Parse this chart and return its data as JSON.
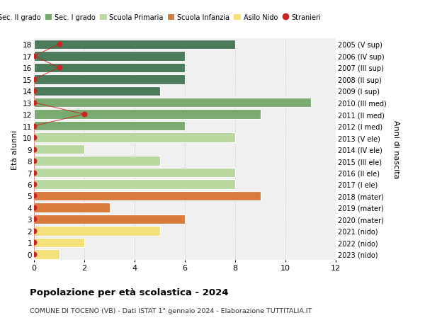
{
  "ages": [
    18,
    17,
    16,
    15,
    14,
    13,
    12,
    11,
    10,
    9,
    8,
    7,
    6,
    5,
    4,
    3,
    2,
    1,
    0
  ],
  "right_labels": [
    "2005 (V sup)",
    "2006 (IV sup)",
    "2007 (III sup)",
    "2008 (II sup)",
    "2009 (I sup)",
    "2010 (III med)",
    "2011 (II med)",
    "2012 (I med)",
    "2013 (V ele)",
    "2014 (IV ele)",
    "2015 (III ele)",
    "2016 (II ele)",
    "2017 (I ele)",
    "2018 (mater)",
    "2019 (mater)",
    "2020 (mater)",
    "2021 (nido)",
    "2022 (nido)",
    "2023 (nido)"
  ],
  "bar_values": [
    8,
    6,
    6,
    6,
    5,
    11,
    9,
    6,
    8,
    2,
    5,
    8,
    8,
    9,
    3,
    6,
    5,
    2,
    1
  ],
  "bar_colors": [
    "#4a7c59",
    "#4a7c59",
    "#4a7c59",
    "#4a7c59",
    "#4a7c59",
    "#7aab6e",
    "#7aab6e",
    "#7aab6e",
    "#b8d8a0",
    "#b8d8a0",
    "#b8d8a0",
    "#b8d8a0",
    "#b8d8a0",
    "#d97b3a",
    "#d97b3a",
    "#d97b3a",
    "#f5e07a",
    "#f5e07a",
    "#f5e07a"
  ],
  "stranieri_x": [
    1,
    0,
    1,
    0,
    0,
    0,
    2,
    0,
    0,
    0,
    0,
    0,
    0,
    0,
    0,
    0,
    0,
    0,
    0
  ],
  "xlim": [
    0,
    12
  ],
  "ylim": [
    -0.5,
    18.5
  ],
  "title": "Popolazione per età scolastica - 2024",
  "subtitle": "COMUNE DI TOCENO (VB) - Dati ISTAT 1° gennaio 2024 - Elaborazione TUTTITALIA.IT",
  "ylabel_left": "Età alunni",
  "ylabel_right": "Anni di nascita",
  "legend_items": [
    {
      "label": "Sec. II grado",
      "color": "#4a7c59"
    },
    {
      "label": "Sec. I grado",
      "color": "#7aab6e"
    },
    {
      "label": "Scuola Primaria",
      "color": "#b8d8a0"
    },
    {
      "label": "Scuola Infanzia",
      "color": "#d97b3a"
    },
    {
      "label": "Asilo Nido",
      "color": "#f5e07a"
    },
    {
      "label": "Stranieri",
      "color": "#cc2222"
    }
  ],
  "bar_height": 0.82,
  "grid_color": "#cccccc",
  "bg_color": "#ffffff",
  "plot_bg_color": "#f0f0f0"
}
